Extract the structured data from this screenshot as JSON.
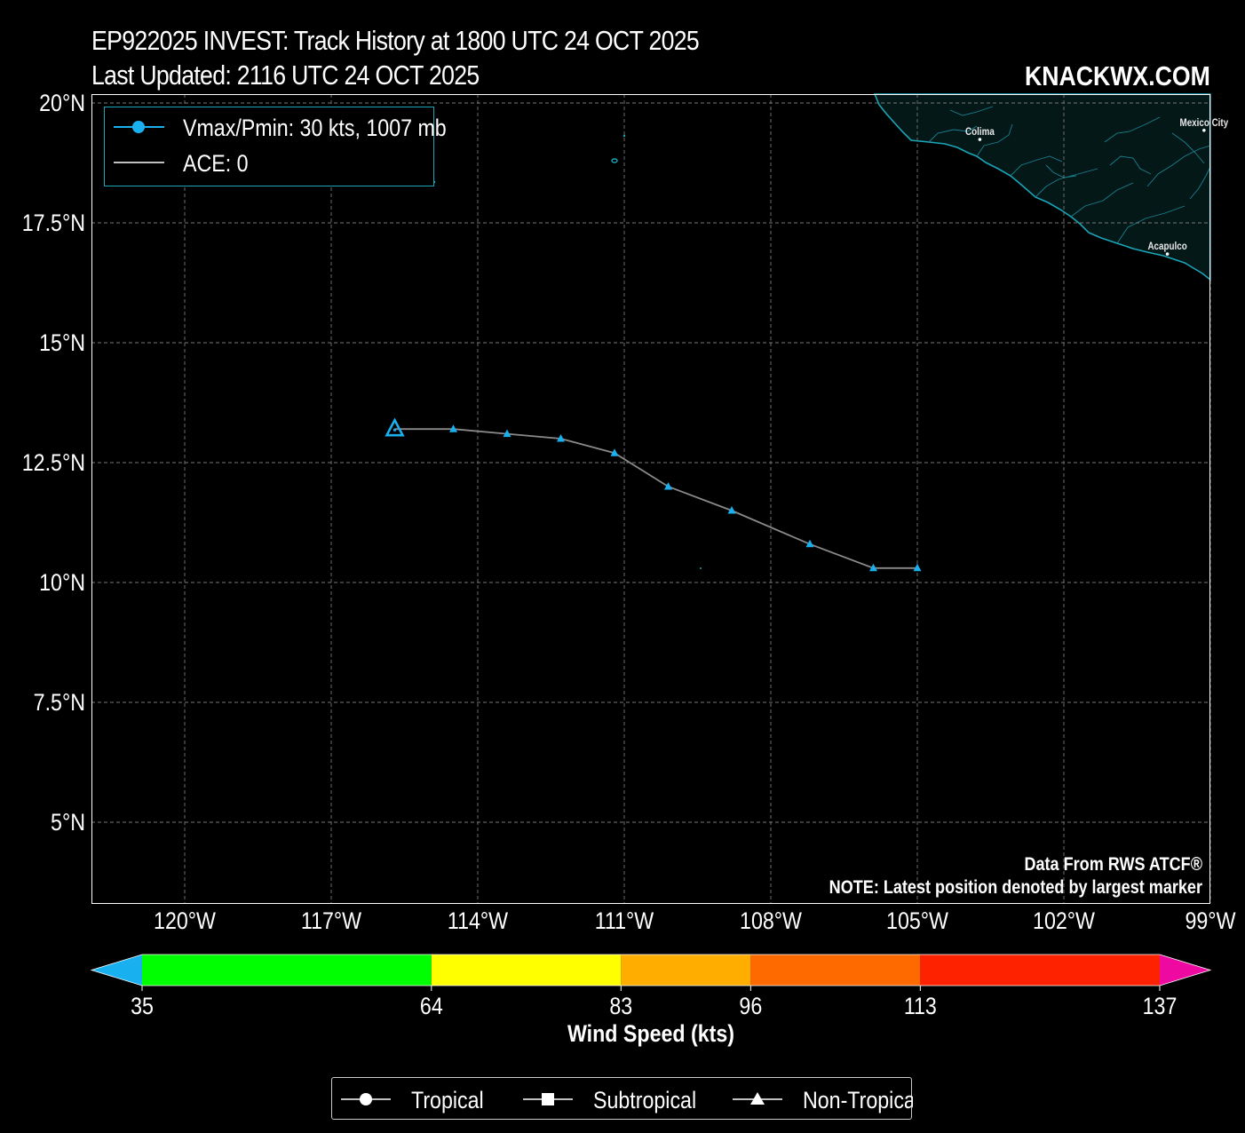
{
  "header": {
    "title_line1": "EP922025 INVEST: Track History at 1800 UTC 24 OCT 2025",
    "title_line2": "Last Updated: 2116 UTC 24 OCT 2025",
    "brand": "KNACKWX.COM"
  },
  "map": {
    "lon_labels": [
      "120°W",
      "117°W",
      "114°W",
      "111°W",
      "108°W",
      "105°W",
      "102°W",
      "99°W"
    ],
    "lat_labels": [
      "20°N",
      "17.5°N",
      "15°N",
      "12.5°N",
      "10°N",
      "7.5°N",
      "5°N"
    ],
    "cities": [
      {
        "name": "Colima",
        "lon": -103.72,
        "lat": 19.24
      },
      {
        "name": "Mexico City",
        "lon": -99.13,
        "lat": 19.43
      },
      {
        "name": "Acapulco",
        "lon": -99.88,
        "lat": 16.85
      }
    ],
    "colors": {
      "land": "#041818",
      "coast": "#1aa5b8",
      "track_line": "#8a8a8a",
      "marker": "#1ab0ef",
      "grid": "#777777"
    }
  },
  "legend_top": {
    "vmax_label": "Vmax/Pmin: 30 kts, 1007 mb",
    "ace_label": "ACE: 0"
  },
  "track": {
    "points": [
      {
        "lon": -105.0,
        "lat": 10.3,
        "type": "Non-Tropical"
      },
      {
        "lon": -105.9,
        "lat": 10.3,
        "type": "Non-Tropical"
      },
      {
        "lon": -107.2,
        "lat": 10.8,
        "type": "Non-Tropical"
      },
      {
        "lon": -108.8,
        "lat": 11.5,
        "type": "Non-Tropical"
      },
      {
        "lon": -110.1,
        "lat": 12.0,
        "type": "Non-Tropical"
      },
      {
        "lon": -111.2,
        "lat": 12.7,
        "type": "Non-Tropical"
      },
      {
        "lon": -112.3,
        "lat": 13.0,
        "type": "Non-Tropical"
      },
      {
        "lon": -113.4,
        "lat": 13.1,
        "type": "Non-Tropical"
      },
      {
        "lon": -114.5,
        "lat": 13.2,
        "type": "Non-Tropical"
      },
      {
        "lon": -115.7,
        "lat": 13.2,
        "type": "Non-Tropical",
        "latest": true
      }
    ]
  },
  "notes": {
    "source": "Data From RWS ATCF®",
    "latest_note": "NOTE: Latest position denoted by largest marker"
  },
  "colorbar": {
    "label": "Wind Speed (kts)",
    "ticks": [
      35,
      64,
      83,
      96,
      113,
      137
    ],
    "segments": [
      {
        "from": 35,
        "to": 64,
        "color": "#00ff00"
      },
      {
        "from": 64,
        "to": 83,
        "color": "#ffff00"
      },
      {
        "from": 83,
        "to": 96,
        "color": "#ffae00"
      },
      {
        "from": 96,
        "to": 113,
        "color": "#ff6a00"
      },
      {
        "from": 113,
        "to": 137,
        "color": "#ff2200"
      }
    ],
    "under_color": "#19b0f0",
    "over_color": "#ee0aa0"
  },
  "legend_bottom": {
    "items": [
      {
        "label": "Tropical",
        "marker": "circle-marker-icon"
      },
      {
        "label": "Subtropical",
        "marker": "square-marker-icon"
      },
      {
        "label": "Non-Tropical",
        "marker": "triangle-marker-icon"
      }
    ]
  }
}
